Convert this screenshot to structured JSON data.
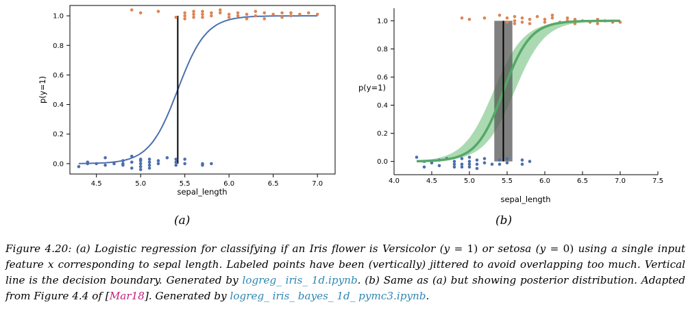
{
  "colors": {
    "class0": "#4c6fad",
    "class1": "#dd8452",
    "fit_line_a": "#4c6fad",
    "fit_line_b": "#55a868",
    "band_b": "#8fce98",
    "boundary_band": "#555555",
    "link": "#2f86b4",
    "cite": "#c21f7a"
  },
  "subfigures": {
    "a_label": "(a)",
    "b_label": "(b)"
  },
  "caption": {
    "prefix": "Figure 4.20: (a) Logistic regression for classifying if an Iris flower is Versicolor (",
    "eq_y1": "y",
    "eq_1": " = 1)",
    "mid1": " or setosa (",
    "eq_y0": "y",
    "eq_0": " = 0)",
    "mid2": " using a single input feature ",
    "var_x": "x",
    "mid3": " corresponding to sepal length. Labeled points have been (vertically) jittered to avoid overlapping too much. Vertical line is the decision boundary. Generated by ",
    "link1": "logreg_ iris_ 1d.ipynb",
    "mid4": ". (b) Same as (a) but showing posterior distribution. Adapted from Figure 4.4 of [",
    "cite": "Mar18",
    "mid5": "]. Generated by ",
    "link2": "logreg_ iris_ bayes_ 1d_ pymc3.ipynb",
    "end": "."
  },
  "chart_data": [
    {
      "type": "scatter",
      "panel": "a",
      "title": "",
      "xlabel": "sepal_length",
      "ylabel": "p(y=1)",
      "xlim": [
        4.2,
        7.2
      ],
      "ylim": [
        -0.07,
        1.07
      ],
      "xticks": [
        "4.5",
        "5.0",
        "5.5",
        "6.0",
        "6.5",
        "7.0"
      ],
      "xtick_values": [
        4.5,
        5.0,
        5.5,
        6.0,
        6.5,
        7.0
      ],
      "yticks": [
        "0.0",
        "0.2",
        "0.4",
        "0.6",
        "0.8",
        "1.0"
      ],
      "ytick_values": [
        0.0,
        0.2,
        0.4,
        0.6,
        0.8,
        1.0
      ],
      "decision_boundary": 5.42,
      "logistic": {
        "midpoint": 5.42,
        "slope": 6.2
      },
      "series": [
        {
          "name": "setosa (y=0)",
          "color_key": "class0",
          "x": [
            4.3,
            4.4,
            4.4,
            4.5,
            4.6,
            4.6,
            4.7,
            4.8,
            4.8,
            4.8,
            4.9,
            4.9,
            4.9,
            5.0,
            5.0,
            5.0,
            5.0,
            5.0,
            5.1,
            5.1,
            5.1,
            5.1,
            5.2,
            5.2,
            5.3,
            5.4,
            5.4,
            5.4,
            5.5,
            5.5,
            5.7,
            5.7,
            5.8
          ],
          "y": [
            -0.02,
            0.0,
            0.01,
            0.0,
            0.04,
            -0.01,
            0.0,
            0.02,
            -0.01,
            0.0,
            0.05,
            0.01,
            -0.03,
            0.02,
            0.0,
            -0.02,
            -0.04,
            0.03,
            0.03,
            0.01,
            -0.01,
            -0.03,
            0.02,
            0.0,
            0.04,
            0.03,
            0.01,
            -0.01,
            0.03,
            0.0,
            0.0,
            -0.01,
            0.0
          ]
        },
        {
          "name": "versicolor (y=1)",
          "color_key": "class1",
          "x": [
            4.9,
            5.0,
            5.2,
            5.4,
            5.5,
            5.5,
            5.5,
            5.6,
            5.6,
            5.6,
            5.7,
            5.7,
            5.7,
            5.8,
            5.8,
            5.9,
            5.9,
            6.0,
            6.0,
            6.1,
            6.1,
            6.2,
            6.2,
            6.3,
            6.3,
            6.4,
            6.4,
            6.5,
            6.6,
            6.6,
            6.7,
            6.7,
            6.8,
            6.9,
            7.0
          ],
          "y": [
            1.04,
            1.02,
            1.03,
            0.99,
            1.02,
            1.0,
            0.98,
            1.03,
            1.01,
            0.99,
            1.03,
            1.01,
            0.99,
            1.02,
            1.0,
            1.02,
            1.04,
            1.01,
            0.99,
            1.02,
            1.0,
            1.01,
            0.98,
            1.03,
            1.0,
            1.02,
            0.98,
            1.01,
            1.02,
            0.99,
            1.02,
            1.0,
            1.01,
            1.02,
            1.01
          ]
        }
      ]
    },
    {
      "type": "scatter",
      "panel": "b",
      "title": "",
      "xlabel": "sepal_length",
      "ylabel": "p(y=1)",
      "xlim": [
        4.0,
        7.5
      ],
      "ylim": [
        -0.07,
        1.07
      ],
      "xticks": [
        "4.0",
        "4.5",
        "5.0",
        "5.5",
        "6.0",
        "6.5",
        "7.0",
        "7.5"
      ],
      "xtick_values": [
        4.0,
        4.5,
        5.0,
        5.5,
        6.0,
        6.5,
        7.0,
        7.5
      ],
      "yticks": [
        "0.0",
        "0.2",
        "0.4",
        "0.6",
        "0.8",
        "1.0"
      ],
      "ytick_values": [
        0.0,
        0.2,
        0.4,
        0.6,
        0.8,
        1.0
      ],
      "decision_boundary": 5.45,
      "boundary_hdi": [
        5.33,
        5.57
      ],
      "logistic": {
        "midpoint": 5.45,
        "slope": 5.6
      },
      "band": {
        "mid_low": 5.32,
        "mid_high": 5.6,
        "slope_low": 5.0,
        "slope_high": 5.0
      },
      "series": [
        {
          "name": "setosa (y=0)",
          "color_key": "class0",
          "x": [
            4.3,
            4.4,
            4.4,
            4.5,
            4.6,
            4.6,
            4.7,
            4.8,
            4.8,
            4.8,
            4.9,
            4.9,
            4.9,
            5.0,
            5.0,
            5.0,
            5.0,
            5.1,
            5.1,
            5.1,
            5.2,
            5.2,
            5.3,
            5.4,
            5.4,
            5.5,
            5.5,
            5.7,
            5.7,
            5.8
          ],
          "y": [
            0.03,
            -0.04,
            0.0,
            -0.01,
            0.01,
            -0.03,
            0.02,
            -0.02,
            0.0,
            -0.04,
            0.02,
            -0.02,
            -0.04,
            0.03,
            0.0,
            -0.02,
            -0.04,
            0.01,
            -0.02,
            -0.05,
            0.02,
            -0.01,
            -0.02,
            0.01,
            -0.02,
            0.02,
            -0.01,
            0.01,
            -0.02,
            0.0
          ]
        },
        {
          "name": "versicolor (y=1)",
          "color_key": "class1",
          "x": [
            4.9,
            5.0,
            5.2,
            5.4,
            5.5,
            5.5,
            5.6,
            5.6,
            5.6,
            5.7,
            5.7,
            5.8,
            5.8,
            5.9,
            6.0,
            6.0,
            6.1,
            6.1,
            6.2,
            6.3,
            6.3,
            6.4,
            6.4,
            6.5,
            6.6,
            6.7,
            6.7,
            6.8,
            6.9,
            7.0
          ],
          "y": [
            1.02,
            1.01,
            1.02,
            1.04,
            1.02,
            0.99,
            1.03,
            1.0,
            0.98,
            1.02,
            0.99,
            1.01,
            0.98,
            1.03,
            1.01,
            0.99,
            1.02,
            1.04,
            0.99,
            1.02,
            1.0,
            1.01,
            0.98,
            1.0,
            0.99,
            1.01,
            0.98,
            1.0,
            0.99,
            0.99
          ]
        }
      ]
    }
  ]
}
